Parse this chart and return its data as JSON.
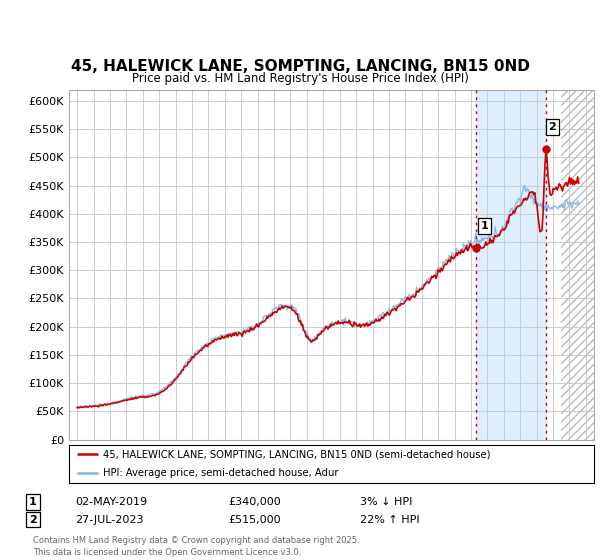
{
  "title": "45, HALEWICK LANE, SOMPTING, LANCING, BN15 0ND",
  "subtitle": "Price paid vs. HM Land Registry's House Price Index (HPI)",
  "ylabel_ticks": [
    "£0",
    "£50K",
    "£100K",
    "£150K",
    "£200K",
    "£250K",
    "£300K",
    "£350K",
    "£400K",
    "£450K",
    "£500K",
    "£550K",
    "£600K"
  ],
  "ytick_values": [
    0,
    50000,
    100000,
    150000,
    200000,
    250000,
    300000,
    350000,
    400000,
    450000,
    500000,
    550000,
    600000
  ],
  "ylim": [
    0,
    620000
  ],
  "xlim_start": 1994.5,
  "xlim_end": 2026.5,
  "sale1_year": 2019.33,
  "sale1_price": 340000,
  "sale2_year": 2023.57,
  "sale2_price": 515000,
  "hpi_color": "#7ab8e8",
  "price_color": "#cc0000",
  "vline_color": "#cc0000",
  "grid_color": "#cccccc",
  "bg_color": "#ffffff",
  "highlight_color": "#ddeeff",
  "future_hatch_color": "#cccccc",
  "legend_line1": "45, HALEWICK LANE, SOMPTING, LANCING, BN15 0ND (semi-detached house)",
  "legend_line2": "HPI: Average price, semi-detached house, Adur",
  "sale1_text": "02-MAY-2019",
  "sale1_amount": "£340,000",
  "sale1_pct": "3% ↓ HPI",
  "sale2_text": "27-JUL-2023",
  "sale2_amount": "£515,000",
  "sale2_pct": "22% ↑ HPI",
  "footer": "Contains HM Land Registry data © Crown copyright and database right 2025.\nThis data is licensed under the Open Government Licence v3.0."
}
